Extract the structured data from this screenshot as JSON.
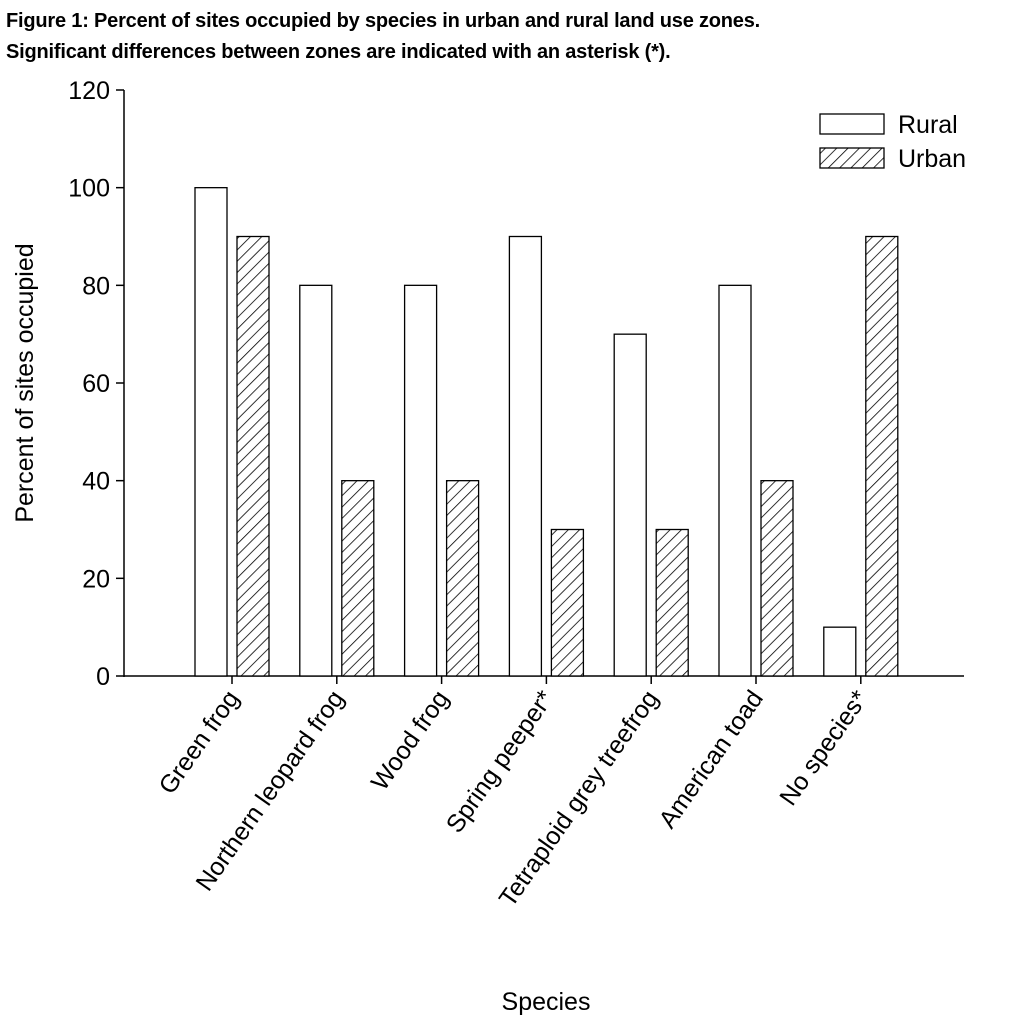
{
  "figure": {
    "caption_line1": "Figure 1:  Percent of sites occupied by species in urban and rural land use zones.",
    "caption_line2": "Significant differences between zones are indicated with an asterisk (*)."
  },
  "chart_data": {
    "type": "bar",
    "title": "",
    "xlabel": "Species",
    "ylabel": "Percent of sites occupied",
    "ylim": [
      0,
      120
    ],
    "yticks": [
      0,
      20,
      40,
      60,
      80,
      100,
      120
    ],
    "categories": [
      "Green frog",
      "Northern leopard frog",
      "Wood frog",
      "Spring peeper*",
      "Tetraploid grey treefrog",
      "American toad",
      "No species*"
    ],
    "series": [
      {
        "name": "Rural",
        "pattern": "solid-white",
        "values": [
          100,
          80,
          80,
          90,
          70,
          80,
          10
        ]
      },
      {
        "name": "Urban",
        "pattern": "diagonal-hatch",
        "values": [
          90,
          40,
          40,
          30,
          30,
          40,
          90
        ]
      }
    ],
    "legend_position": "top-right",
    "grid": false
  }
}
